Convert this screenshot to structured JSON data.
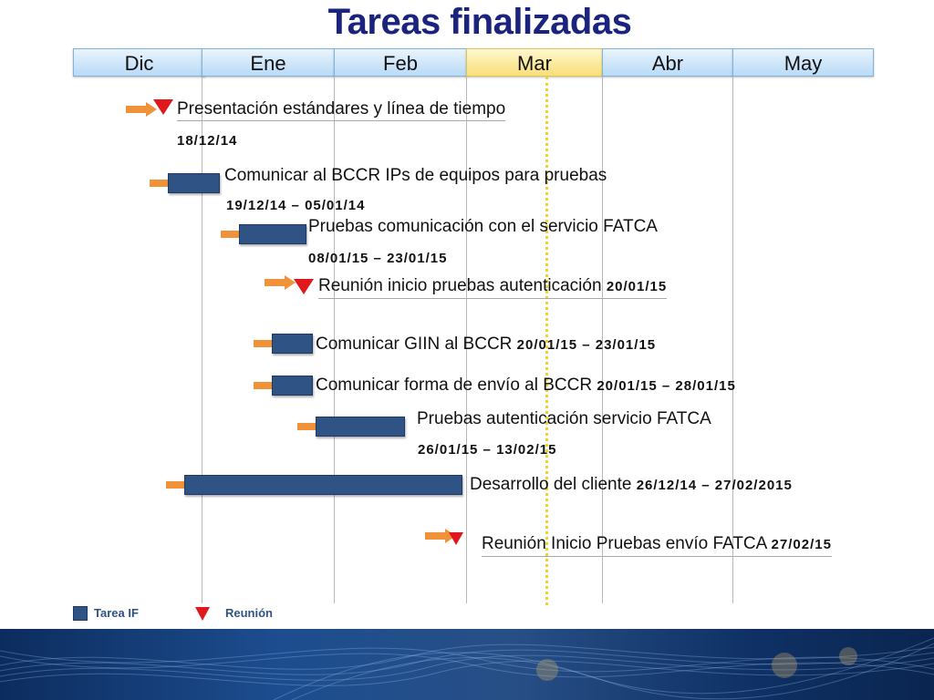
{
  "title": "Tareas finalizadas",
  "months": [
    "Dic",
    "Ene",
    "Feb",
    "Mar",
    "Abr",
    "May"
  ],
  "current_month": "Mar",
  "tasks": [
    {
      "label": "Presentación estándares y línea de tiempo",
      "dates": "18/12/14",
      "kind": "reunion"
    },
    {
      "label": "Comunicar al BCCR IPs de equipos para pruebas",
      "dates": "19/12/14 –  05/01/14",
      "kind": "tarea"
    },
    {
      "label": "Pruebas comunicación con el servicio FATCA",
      "dates": "08/01/15 – 23/01/15",
      "kind": "tarea"
    },
    {
      "label": "Reunión inicio pruebas autenticación ",
      "dates": "20/01/15",
      "kind": "reunion"
    },
    {
      "label": "Comunicar GIIN al BCCR ",
      "dates": "20/01/15 –  23/01/15",
      "kind": "tarea"
    },
    {
      "label": "Comunicar forma de envío al BCCR ",
      "dates": "20/01/15 –  28/01/15",
      "kind": "tarea"
    },
    {
      "label": "Pruebas autenticación servicio  FATCA",
      "dates": "26/01/15 –  13/02/15",
      "kind": "tarea"
    },
    {
      "label": "Desarrollo del cliente ",
      "dates": "26/12/14 – 27/02/2015",
      "kind": "tarea"
    },
    {
      "label": "Reunión Inicio Pruebas envío FATCA ",
      "dates": "27/02/15",
      "kind": "reunion"
    }
  ],
  "legend": {
    "tarea": "Tarea  IF",
    "reunion": "Reunión"
  },
  "colors": {
    "bar": "#2f5384",
    "meeting": "#e0181b",
    "arrow": "#f0923a",
    "today": "#f2d22e"
  }
}
